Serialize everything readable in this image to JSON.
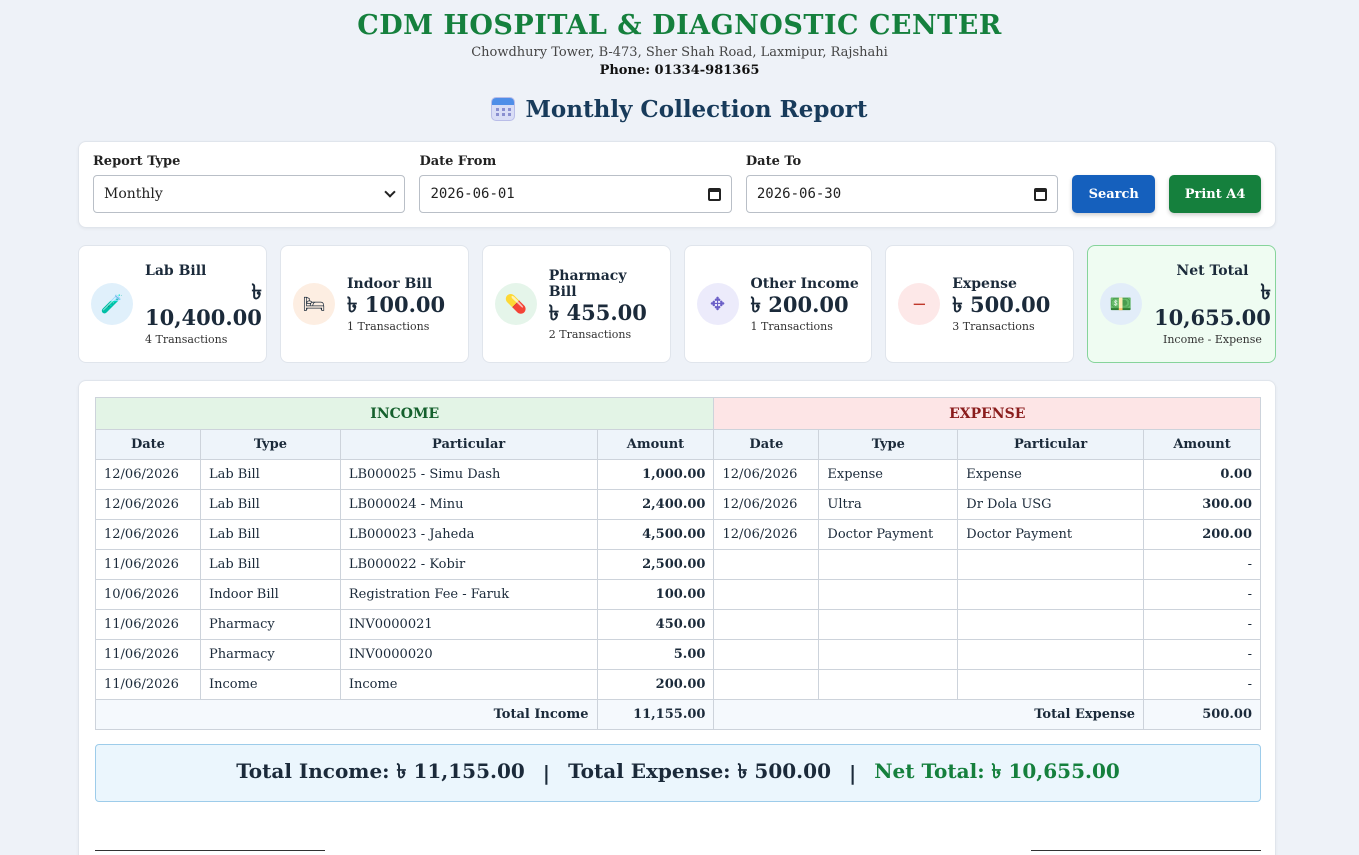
{
  "header": {
    "name": "CDM HOSPITAL & DIAGNOSTIC CENTER",
    "address": "Chowdhury Tower, B-473, Sher Shah Road, Laxmipur, Rajshahi",
    "phone": "Phone: 01334-981365",
    "report_title": "Monthly Collection Report"
  },
  "filter": {
    "report_type_label": "Report Type",
    "report_type_value": "Monthly",
    "date_from_label": "Date From",
    "date_from_value": "2026-06-01",
    "date_to_label": "Date To",
    "date_to_value": "2026-06-30",
    "search_label": "Search",
    "print_label": "Print A4"
  },
  "stats": {
    "lab": {
      "label": "Lab Bill",
      "currency": "৳",
      "value": "10,400.00",
      "sub": "4 Transactions"
    },
    "indoor": {
      "label": "Indoor Bill",
      "value": "৳ 100.00",
      "sub": "1 Transactions"
    },
    "pharmacy": {
      "label": "Pharmacy Bill",
      "value": "৳ 455.00",
      "sub": "2 Transactions"
    },
    "other": {
      "label": "Other Income",
      "value": "৳ 200.00",
      "sub": "1 Transactions"
    },
    "expense": {
      "label": "Expense",
      "value": "৳ 500.00",
      "sub": "3 Transactions"
    },
    "net": {
      "label": "Net Total",
      "currency": "৳",
      "value": "10,655.00",
      "sub": "Income - Expense"
    }
  },
  "table": {
    "income_band": "INCOME",
    "expense_band": "EXPENSE",
    "headers": {
      "date": "Date",
      "type": "Type",
      "particular": "Particular",
      "amount": "Amount"
    },
    "income_rows": [
      {
        "date": "12/06/2026",
        "type": "Lab Bill",
        "particular": "LB000025 - Simu Dash",
        "amount": "1,000.00"
      },
      {
        "date": "12/06/2026",
        "type": "Lab Bill",
        "particular": "LB000024 - Minu",
        "amount": "2,400.00"
      },
      {
        "date": "12/06/2026",
        "type": "Lab Bill",
        "particular": "LB000023 - Jaheda",
        "amount": "4,500.00"
      },
      {
        "date": "11/06/2026",
        "type": "Lab Bill",
        "particular": "LB000022 - Kobir",
        "amount": "2,500.00"
      },
      {
        "date": "10/06/2026",
        "type": "Indoor Bill",
        "particular": "Registration Fee - Faruk",
        "amount": "100.00"
      },
      {
        "date": "11/06/2026",
        "type": "Pharmacy",
        "particular": "INV0000021",
        "amount": "450.00"
      },
      {
        "date": "11/06/2026",
        "type": "Pharmacy",
        "particular": "INV0000020",
        "amount": "5.00"
      },
      {
        "date": "11/06/2026",
        "type": "Income",
        "particular": "Income",
        "amount": "200.00"
      }
    ],
    "expense_rows": [
      {
        "date": "12/06/2026",
        "type": "Expense",
        "particular": "Expense",
        "amount": "0.00"
      },
      {
        "date": "12/06/2026",
        "type": "Ultra",
        "particular": "Dr Dola USG",
        "amount": "300.00"
      },
      {
        "date": "12/06/2026",
        "type": "Doctor Payment",
        "particular": "Doctor Payment",
        "amount": "200.00"
      },
      {
        "date": "",
        "type": "",
        "particular": "",
        "amount": "-"
      },
      {
        "date": "",
        "type": "",
        "particular": "",
        "amount": "-"
      },
      {
        "date": "",
        "type": "",
        "particular": "",
        "amount": "-"
      },
      {
        "date": "",
        "type": "",
        "particular": "",
        "amount": "-"
      },
      {
        "date": "",
        "type": "",
        "particular": "",
        "amount": "-"
      }
    ],
    "total_income_label": "Total Income",
    "total_income_value": "11,155.00",
    "total_expense_label": "Total Expense",
    "total_expense_value": "500.00"
  },
  "summary": {
    "income": "Total Income: ৳ 11,155.00",
    "sep1": "|",
    "expense": "Total Expense: ৳ 500.00",
    "sep2": "|",
    "net": "Net Total: ৳ 10,655.00"
  }
}
